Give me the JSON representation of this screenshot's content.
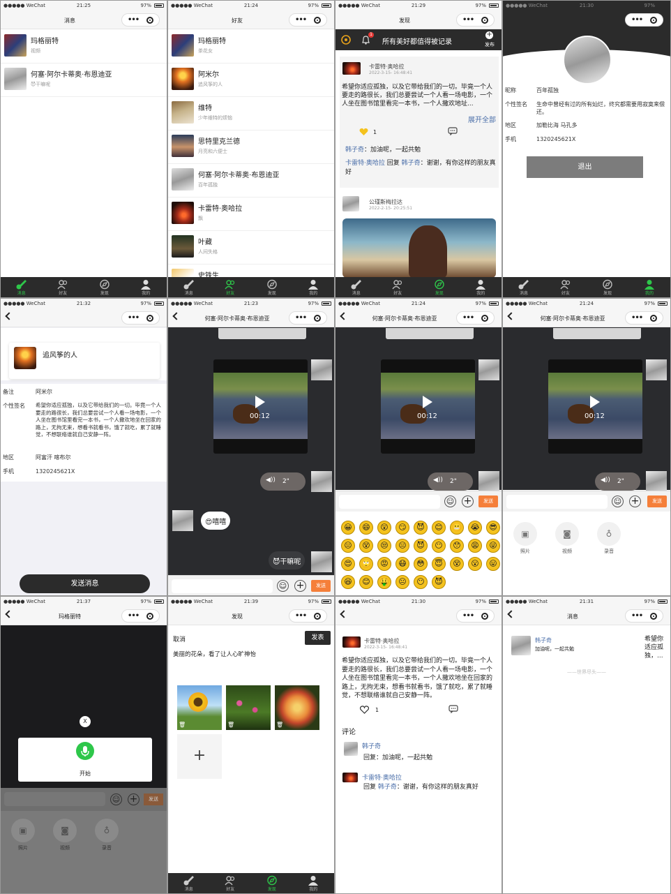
{
  "statusbar": {
    "carrier": "●●●●● WeChat",
    "battery": "97%",
    "times": [
      "21:25",
      "21:24",
      "21:29",
      "21:30",
      "21:32",
      "21:23",
      "21:24",
      "21:24",
      "21:37",
      "21:39",
      "21:30",
      "21:31"
    ]
  },
  "tabs": [
    "消息",
    "好友",
    "发现",
    "我的"
  ],
  "messages": {
    "title": "消息",
    "items": [
      {
        "name": "玛格丽特",
        "sub": "视频"
      },
      {
        "name": "何塞·阿尔卡蒂奥·布恩迪亚",
        "sub": "😈干嘛呢"
      }
    ]
  },
  "friends": {
    "title": "好友",
    "items": [
      {
        "name": "玛格丽特",
        "sub": "茶花女"
      },
      {
        "name": "阿米尔",
        "sub": "追风筝的人"
      },
      {
        "name": "维特",
        "sub": "少年维特的烦恼"
      },
      {
        "name": "思特里克兰德",
        "sub": "月亮和六便士"
      },
      {
        "name": "何塞·阿尔卡蒂奥·布恩迪亚",
        "sub": "百年孤独"
      },
      {
        "name": "卡雷特·奥哈拉",
        "sub": "飘"
      },
      {
        "name": "叶藏",
        "sub": "人间失格"
      },
      {
        "name": "史铁生",
        "sub": ""
      }
    ]
  },
  "discover": {
    "title": "发现",
    "banner": "所有美好都值得被记录",
    "publish": "发布",
    "badge": "1",
    "post1": {
      "name": "卡雷特·奥哈拉",
      "time": "2022-3-15- 16:48:41",
      "text": "希望你适应孤独，以及它带给我们的一切。毕竟一个人要走的路很长，我们总要尝试一个人看一场电影，一个人坐在图书馆里看完一本书，一个人撒欢地址...",
      "expand": "展开全部",
      "likes": "1",
      "c1_name": "韩子奇",
      "c1_text": "加油呢，一起共勉",
      "c2_name": "卡雷特·奥哈拉",
      "c2_reply": "回复",
      "c2_to": "韩子奇",
      "c2_text": "谢谢，有你这样的朋友真好"
    },
    "post2": {
      "name": "公瑾斯梅拉达",
      "time": "2022-2-15- 20:25:51"
    }
  },
  "me": {
    "fields": [
      {
        "k": "昵称",
        "v": "百年孤独"
      },
      {
        "k": "个性签名",
        "v": "生命中曾经有过的所有灿烂，终究都需要用寂寞来偿还。"
      },
      {
        "k": "地区",
        "v": "加勒比海 马孔多"
      },
      {
        "k": "手机",
        "v": "1320245621X"
      }
    ],
    "logout": "退出"
  },
  "friend_detail": {
    "name": "追风筝的人",
    "fields": [
      {
        "k": "备注",
        "v": "阿米尔"
      },
      {
        "k": "个性签名",
        "v": "希望你适应孤独，以及它带给我们的一切。毕竟一个人要走的路很长，我们总要尝试一个人看一场电影，一个人坐在图书馆里看完一本书，一个人撒欢地坐在回家的路上，无拘无束，想看书就看书，饿了就吃，累了就睡觉，不想联络谁就自己安静一阵。"
      },
      {
        "k": "地区",
        "v": "阿富汗 喀布尔"
      },
      {
        "k": "手机",
        "v": "1320245621X"
      }
    ],
    "send": "发送消息"
  },
  "chat": {
    "title": "何塞·阿尔卡蒂奥·布恩迪亚",
    "duration": "00:12",
    "voice": "2\"",
    "msg1": "😍嘻嘻",
    "msg2": "😈干嘛呢",
    "send": "发送"
  },
  "emojis": [
    "😀",
    "😄",
    "😲",
    "😏",
    "😈",
    "😊",
    "😬",
    "😭",
    "😎",
    "😑",
    "😵",
    "😒",
    "😑",
    "😈",
    "😶",
    "😯",
    "😩",
    "😜",
    "😍",
    "🙄",
    "😡",
    "😷",
    "😳",
    "😇",
    "😵",
    "😮",
    "😛",
    "😆",
    "😊",
    "🤑",
    "😐",
    "😶",
    "😈"
  ],
  "actions": [
    "照片",
    "视频",
    "录音"
  ],
  "record": {
    "title": "玛格丽特",
    "close": "X",
    "start": "开始"
  },
  "compose": {
    "title": "发现",
    "cancel": "取消",
    "publish": "发表",
    "text": "美丽的花朵，看了让人心旷神怡",
    "add": "+"
  },
  "detail": {
    "name": "卡雷特·奥哈拉",
    "time": "2022-3-15- 16:48:41",
    "text": "希望你适应孤独，以及它带给我们的一切。毕竟一个人要走的路很长，我们总要尝试一个人看一场电影，一个人坐在图书馆里看完一本书，一个人撒欢地坐在回家的路上，无拘无束，想看书就看书，饿了就吃，累了就睡觉，不想联络谁就自己安静一阵。",
    "likes": "1",
    "comments_label": "评论",
    "c1_name": "韩子奇",
    "c1_text": "回复：加油呢，一起共勉",
    "c2_name": "卡雷特·奥哈拉",
    "c2_reply": "回复",
    "c2_to": "韩子奇",
    "c2_text": "：谢谢，有你这样的朋友真好"
  },
  "notify": {
    "title": "消息",
    "name": "韩子奇",
    "text": "加油呢，一起共勉",
    "preview": "希望你适应孤独，...",
    "end": "——世界尽头——"
  }
}
